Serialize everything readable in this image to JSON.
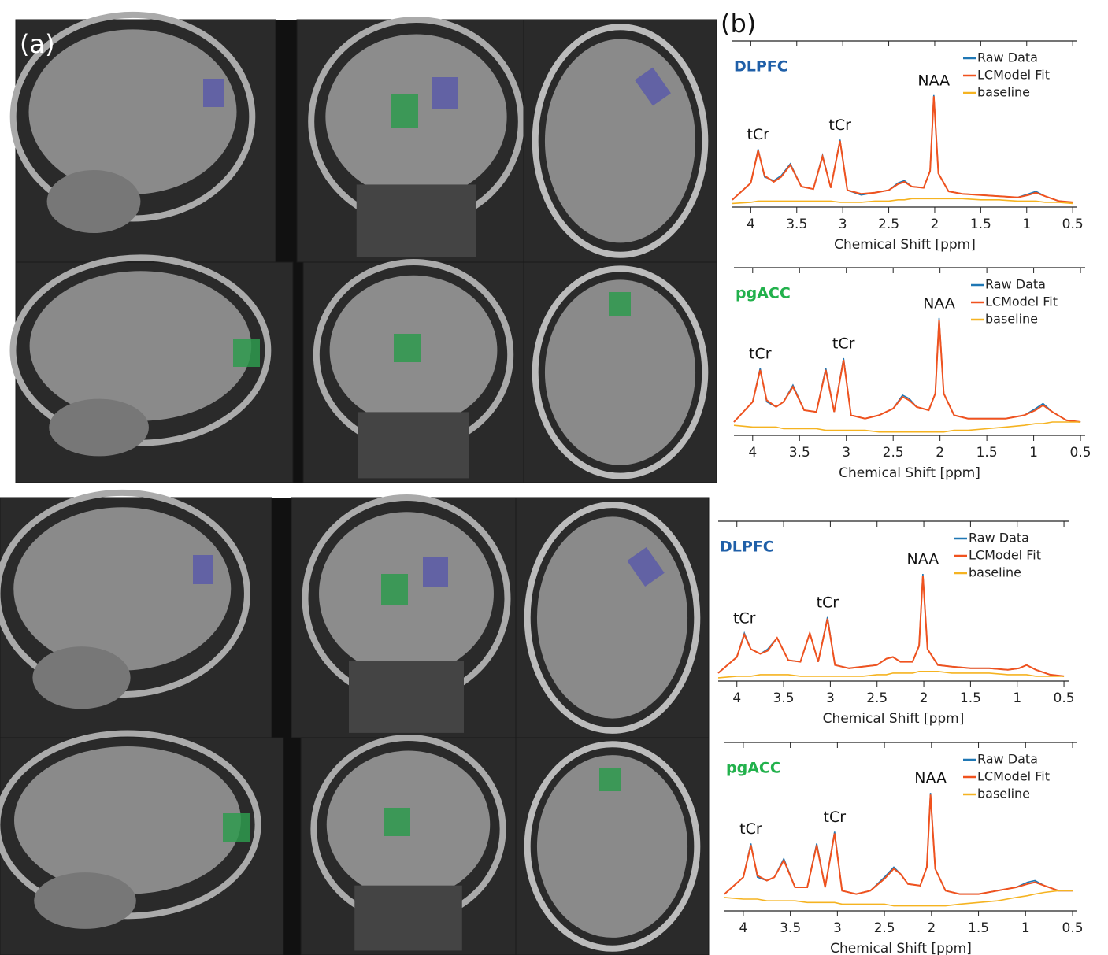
{
  "panel_labels": {
    "a": "(a)",
    "b": "(b)"
  },
  "chart_data": [
    {
      "type": "line",
      "title": "DLPFC",
      "title_color": "#1f5fa8",
      "x_label": "Chemical Shift [ppm]",
      "legend": "upper right",
      "xlim": [
        4.2,
        0.45
      ],
      "ylim": [
        0,
        1.38
      ],
      "xticks": [
        4,
        3.5,
        3,
        2.5,
        2,
        1.5,
        1,
        0.5
      ],
      "x": [
        4.2,
        4.0,
        3.92,
        3.85,
        3.75,
        3.67,
        3.57,
        3.45,
        3.32,
        3.22,
        3.13,
        3.03,
        2.95,
        2.8,
        2.65,
        2.5,
        2.4,
        2.33,
        2.25,
        2.12,
        2.05,
        2.01,
        1.96,
        1.85,
        1.7,
        1.5,
        1.3,
        1.1,
        0.98,
        0.9,
        0.8,
        0.65,
        0.5
      ],
      "series": [
        {
          "name": "Raw Data",
          "color": "#1f77b4",
          "values": [
            0.06,
            0.2,
            0.48,
            0.25,
            0.22,
            0.26,
            0.36,
            0.17,
            0.15,
            0.43,
            0.16,
            0.56,
            0.14,
            0.1,
            0.12,
            0.14,
            0.2,
            0.22,
            0.17,
            0.16,
            0.3,
            0.93,
            0.28,
            0.13,
            0.11,
            0.1,
            0.09,
            0.08,
            0.11,
            0.13,
            0.09,
            0.05,
            0.04
          ]
        },
        {
          "name": "LCModel Fit",
          "color": "#f0521e",
          "values": [
            0.06,
            0.2,
            0.47,
            0.26,
            0.21,
            0.25,
            0.35,
            0.17,
            0.15,
            0.42,
            0.16,
            0.55,
            0.14,
            0.11,
            0.12,
            0.14,
            0.19,
            0.21,
            0.17,
            0.16,
            0.3,
            0.92,
            0.28,
            0.13,
            0.11,
            0.1,
            0.09,
            0.08,
            0.1,
            0.12,
            0.09,
            0.05,
            0.04
          ]
        },
        {
          "name": "baseline",
          "color": "#f5b321",
          "values": [
            0.03,
            0.04,
            0.05,
            0.05,
            0.05,
            0.05,
            0.05,
            0.05,
            0.05,
            0.05,
            0.05,
            0.04,
            0.04,
            0.04,
            0.05,
            0.05,
            0.06,
            0.06,
            0.07,
            0.07,
            0.07,
            0.07,
            0.07,
            0.07,
            0.07,
            0.06,
            0.06,
            0.05,
            0.05,
            0.05,
            0.04,
            0.04,
            0.03
          ]
        }
      ],
      "annotations": [
        {
          "text": "tCr",
          "x": 3.92
        },
        {
          "text": "tCr",
          "x": 3.03
        },
        {
          "text": "NAA",
          "x": 2.01
        }
      ]
    },
    {
      "type": "line",
      "title": "pgACC",
      "title_color": "#22b14c",
      "x_label": "Chemical Shift [ppm]",
      "legend": "upper right",
      "xlim": [
        4.2,
        0.45
      ],
      "ylim": [
        0,
        1
      ],
      "xticks": [
        4,
        3.5,
        3,
        2.5,
        2,
        1.5,
        1,
        0.5
      ],
      "x": [
        4.2,
        4.0,
        3.92,
        3.85,
        3.75,
        3.67,
        3.57,
        3.45,
        3.32,
        3.22,
        3.13,
        3.03,
        2.95,
        2.8,
        2.65,
        2.5,
        2.4,
        2.33,
        2.25,
        2.12,
        2.05,
        2.01,
        1.96,
        1.85,
        1.7,
        1.5,
        1.3,
        1.1,
        0.98,
        0.9,
        0.8,
        0.65,
        0.5
      ],
      "series": [
        {
          "name": "Raw Data",
          "color": "#1f77b4",
          "values": [
            0.08,
            0.2,
            0.4,
            0.2,
            0.17,
            0.2,
            0.3,
            0.15,
            0.14,
            0.4,
            0.14,
            0.46,
            0.12,
            0.1,
            0.12,
            0.16,
            0.24,
            0.22,
            0.17,
            0.15,
            0.25,
            0.7,
            0.25,
            0.12,
            0.1,
            0.1,
            0.1,
            0.12,
            0.16,
            0.19,
            0.14,
            0.09,
            0.08
          ]
        },
        {
          "name": "LCModel Fit",
          "color": "#f0521e",
          "values": [
            0.08,
            0.2,
            0.39,
            0.21,
            0.17,
            0.2,
            0.29,
            0.15,
            0.14,
            0.39,
            0.14,
            0.45,
            0.12,
            0.1,
            0.12,
            0.16,
            0.23,
            0.21,
            0.17,
            0.15,
            0.25,
            0.69,
            0.25,
            0.12,
            0.1,
            0.1,
            0.1,
            0.12,
            0.15,
            0.18,
            0.14,
            0.09,
            0.08
          ]
        },
        {
          "name": "baseline",
          "color": "#f5b321",
          "values": [
            0.06,
            0.05,
            0.05,
            0.05,
            0.05,
            0.04,
            0.04,
            0.04,
            0.04,
            0.03,
            0.03,
            0.03,
            0.03,
            0.03,
            0.02,
            0.02,
            0.02,
            0.02,
            0.02,
            0.02,
            0.02,
            0.02,
            0.02,
            0.03,
            0.03,
            0.04,
            0.05,
            0.06,
            0.07,
            0.07,
            0.08,
            0.08,
            0.08
          ]
        }
      ],
      "annotations": [
        {
          "text": "tCr",
          "x": 3.92
        },
        {
          "text": "tCr",
          "x": 3.03
        },
        {
          "text": "NAA",
          "x": 2.01
        }
      ]
    },
    {
      "type": "line",
      "title": "DLPFC",
      "title_color": "#1f5fa8",
      "x_label": "Chemical Shift [ppm]",
      "legend": "upper right",
      "xlim": [
        4.2,
        0.45
      ],
      "ylim": [
        0,
        1
      ],
      "xticks": [
        4,
        3.5,
        3,
        2.5,
        2,
        1.5,
        1,
        0.5
      ],
      "x": [
        4.2,
        4.0,
        3.92,
        3.85,
        3.75,
        3.67,
        3.57,
        3.45,
        3.32,
        3.22,
        3.13,
        3.03,
        2.95,
        2.8,
        2.65,
        2.5,
        2.4,
        2.33,
        2.25,
        2.12,
        2.05,
        2.01,
        1.96,
        1.85,
        1.7,
        1.5,
        1.3,
        1.1,
        0.98,
        0.9,
        0.8,
        0.65,
        0.5
      ],
      "series": [
        {
          "name": "Raw Data",
          "color": "#1f77b4",
          "values": [
            0.05,
            0.15,
            0.3,
            0.2,
            0.17,
            0.2,
            0.27,
            0.13,
            0.12,
            0.3,
            0.12,
            0.4,
            0.1,
            0.08,
            0.09,
            0.1,
            0.14,
            0.15,
            0.12,
            0.12,
            0.22,
            0.67,
            0.2,
            0.1,
            0.09,
            0.08,
            0.08,
            0.07,
            0.08,
            0.1,
            0.07,
            0.04,
            0.03
          ]
        },
        {
          "name": "LCModel Fit",
          "color": "#f0521e",
          "values": [
            0.05,
            0.15,
            0.29,
            0.2,
            0.17,
            0.19,
            0.27,
            0.13,
            0.12,
            0.3,
            0.12,
            0.39,
            0.1,
            0.08,
            0.09,
            0.1,
            0.14,
            0.15,
            0.12,
            0.12,
            0.22,
            0.66,
            0.2,
            0.1,
            0.09,
            0.08,
            0.08,
            0.07,
            0.08,
            0.1,
            0.07,
            0.04,
            0.03
          ]
        },
        {
          "name": "baseline",
          "color": "#f5b321",
          "values": [
            0.02,
            0.03,
            0.03,
            0.03,
            0.04,
            0.04,
            0.04,
            0.04,
            0.03,
            0.03,
            0.03,
            0.03,
            0.03,
            0.03,
            0.03,
            0.04,
            0.04,
            0.05,
            0.05,
            0.05,
            0.06,
            0.06,
            0.06,
            0.06,
            0.05,
            0.05,
            0.05,
            0.04,
            0.04,
            0.04,
            0.03,
            0.03,
            0.03
          ]
        }
      ],
      "annotations": [
        {
          "text": "tCr",
          "x": 3.92
        },
        {
          "text": "tCr",
          "x": 3.03
        },
        {
          "text": "NAA",
          "x": 2.01
        }
      ]
    },
    {
      "type": "line",
      "title": "pgACC",
      "title_color": "#22b14c",
      "x_label": "Chemical Shift [ppm]",
      "legend": "upper right",
      "xlim": [
        4.2,
        0.45
      ],
      "ylim": [
        0,
        1
      ],
      "xticks": [
        4,
        3.5,
        3,
        2.5,
        2,
        1.5,
        1,
        0.5
      ],
      "x": [
        4.2,
        4.0,
        3.92,
        3.85,
        3.75,
        3.67,
        3.57,
        3.45,
        3.32,
        3.22,
        3.13,
        3.03,
        2.95,
        2.8,
        2.65,
        2.5,
        2.4,
        2.33,
        2.25,
        2.12,
        2.05,
        2.01,
        1.96,
        1.85,
        1.7,
        1.5,
        1.3,
        1.1,
        0.98,
        0.9,
        0.8,
        0.65,
        0.5
      ],
      "series": [
        {
          "name": "Raw Data",
          "color": "#1f77b4",
          "values": [
            0.1,
            0.2,
            0.4,
            0.2,
            0.18,
            0.2,
            0.31,
            0.14,
            0.14,
            0.4,
            0.14,
            0.47,
            0.12,
            0.1,
            0.12,
            0.2,
            0.26,
            0.22,
            0.16,
            0.15,
            0.26,
            0.7,
            0.25,
            0.12,
            0.1,
            0.1,
            0.12,
            0.14,
            0.17,
            0.18,
            0.15,
            0.12,
            0.12
          ]
        },
        {
          "name": "LCModel Fit",
          "color": "#f0521e",
          "values": [
            0.1,
            0.2,
            0.39,
            0.21,
            0.18,
            0.2,
            0.3,
            0.14,
            0.14,
            0.39,
            0.14,
            0.46,
            0.12,
            0.1,
            0.12,
            0.19,
            0.25,
            0.22,
            0.16,
            0.15,
            0.26,
            0.69,
            0.25,
            0.12,
            0.1,
            0.1,
            0.12,
            0.14,
            0.16,
            0.17,
            0.15,
            0.12,
            0.12
          ]
        },
        {
          "name": "baseline",
          "color": "#f5b321",
          "values": [
            0.08,
            0.07,
            0.07,
            0.07,
            0.06,
            0.06,
            0.06,
            0.06,
            0.05,
            0.05,
            0.05,
            0.05,
            0.04,
            0.04,
            0.04,
            0.04,
            0.03,
            0.03,
            0.03,
            0.03,
            0.03,
            0.03,
            0.03,
            0.03,
            0.04,
            0.05,
            0.06,
            0.08,
            0.09,
            0.1,
            0.11,
            0.12,
            0.12
          ]
        }
      ],
      "annotations": [
        {
          "text": "tCr",
          "x": 3.92
        },
        {
          "text": "tCr",
          "x": 3.03
        },
        {
          "text": "NAA",
          "x": 2.01
        }
      ]
    }
  ]
}
